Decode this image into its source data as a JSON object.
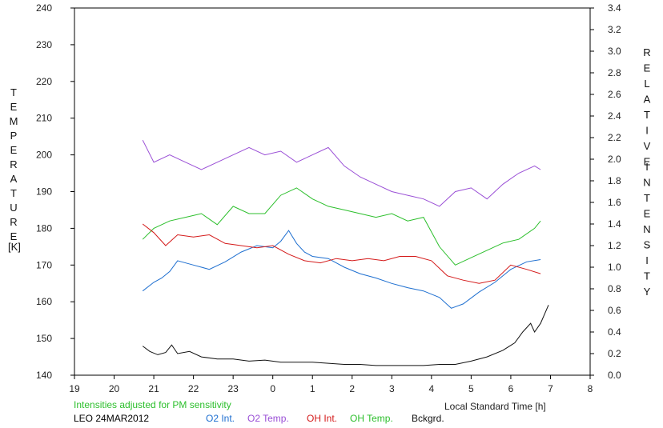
{
  "chart_data": {
    "type": "line",
    "left_axis": {
      "label_letters": [
        "T",
        "E",
        "M",
        "P",
        "E",
        "R",
        "A",
        "T",
        "U",
        "R",
        "E"
      ],
      "unit": "[K]",
      "ylim": [
        140,
        240
      ],
      "ticks": [
        140,
        150,
        160,
        170,
        180,
        190,
        200,
        210,
        220,
        230,
        240
      ]
    },
    "right_axis": {
      "label_word1": [
        "R",
        "E",
        "L",
        "A",
        "T",
        "I",
        "V",
        "E"
      ],
      "label_word2": [
        "I",
        "N",
        "T",
        "E",
        "N",
        "S",
        "I",
        "T",
        "Y"
      ],
      "ylim": [
        0.0,
        3.4
      ],
      "ticks": [
        "0.0",
        "0.2",
        "0.4",
        "0.6",
        "0.8",
        "1.0",
        "1.2",
        "1.4",
        "1.6",
        "1.8",
        "2.0",
        "2.2",
        "2.4",
        "2.6",
        "2.8",
        "3.0",
        "3.2",
        "3.4"
      ]
    },
    "x_axis": {
      "xlabel": "Local Standard Time [h]",
      "range": [
        19,
        32
      ],
      "tick_labels": [
        "19",
        "20",
        "21",
        "22",
        "23",
        "0",
        "1",
        "2",
        "3",
        "4",
        "5",
        "6",
        "7",
        "8"
      ]
    },
    "note": "Intensities adjusted for PM sensitivity",
    "station_date": "LEO 24MAR2012",
    "grid": false,
    "series": [
      {
        "name": "O2 Int.",
        "axis": "right",
        "color": "#1e6fd0",
        "x": [
          20.72,
          21.0,
          21.2,
          21.4,
          21.6,
          22.0,
          22.4,
          22.8,
          23.2,
          23.6,
          24.0,
          24.2,
          24.4,
          24.6,
          24.8,
          25.0,
          25.4,
          25.8,
          26.2,
          26.6,
          27.0,
          27.4,
          27.8,
          28.2,
          28.5,
          28.8,
          29.2,
          29.6,
          30.0,
          30.4,
          30.75
        ],
        "y": [
          0.78,
          0.86,
          0.9,
          0.96,
          1.06,
          1.02,
          0.98,
          1.05,
          1.14,
          1.2,
          1.18,
          1.24,
          1.34,
          1.22,
          1.14,
          1.1,
          1.08,
          1.0,
          0.94,
          0.9,
          0.85,
          0.81,
          0.78,
          0.72,
          0.62,
          0.66,
          0.77,
          0.86,
          0.98,
          1.05,
          1.07
        ]
      },
      {
        "name": "O2 Temp.",
        "axis": "left",
        "color": "#9a4fd6",
        "x": [
          20.72,
          21.0,
          21.4,
          21.8,
          22.2,
          22.6,
          23.0,
          23.4,
          23.8,
          24.2,
          24.6,
          25.0,
          25.4,
          25.8,
          26.2,
          26.6,
          27.0,
          27.4,
          27.8,
          28.2,
          28.6,
          29.0,
          29.4,
          29.8,
          30.2,
          30.6,
          30.75
        ],
        "y": [
          204,
          198,
          200,
          198,
          196,
          198,
          200,
          202,
          200,
          201,
          198,
          200,
          202,
          197,
          194,
          192,
          190,
          189,
          188,
          186,
          190,
          191,
          188,
          192,
          195,
          197,
          196
        ]
      },
      {
        "name": "OH Int.",
        "axis": "right",
        "color": "#d41a1a",
        "x": [
          20.72,
          21.0,
          21.3,
          21.6,
          22.0,
          22.4,
          22.8,
          23.2,
          23.6,
          24.0,
          24.4,
          24.8,
          25.2,
          25.6,
          26.0,
          26.4,
          26.8,
          27.2,
          27.6,
          28.0,
          28.4,
          28.8,
          29.2,
          29.6,
          30.0,
          30.4,
          30.75
        ],
        "y": [
          1.4,
          1.32,
          1.2,
          1.3,
          1.28,
          1.3,
          1.22,
          1.2,
          1.18,
          1.2,
          1.12,
          1.06,
          1.04,
          1.08,
          1.06,
          1.08,
          1.06,
          1.1,
          1.1,
          1.06,
          0.92,
          0.88,
          0.85,
          0.88,
          1.02,
          0.98,
          0.94
        ]
      },
      {
        "name": "OH Temp.",
        "axis": "left",
        "color": "#2cbf2c",
        "x": [
          20.72,
          21.0,
          21.4,
          21.8,
          22.2,
          22.6,
          23.0,
          23.4,
          23.8,
          24.2,
          24.6,
          25.0,
          25.4,
          25.8,
          26.2,
          26.6,
          27.0,
          27.4,
          27.8,
          28.2,
          28.6,
          29.0,
          29.4,
          29.8,
          30.2,
          30.6,
          30.75
        ],
        "y": [
          177,
          180,
          182,
          183,
          184,
          181,
          186,
          184,
          184,
          189,
          191,
          188,
          186,
          185,
          184,
          183,
          184,
          182,
          183,
          175,
          170,
          172,
          174,
          176,
          177,
          180,
          182
        ]
      },
      {
        "name": "Bckgrd.",
        "axis": "right",
        "color": "#111111",
        "x": [
          20.72,
          20.9,
          21.1,
          21.3,
          21.45,
          21.6,
          21.9,
          22.2,
          22.6,
          23.0,
          23.4,
          23.8,
          24.2,
          24.6,
          25.0,
          25.4,
          25.8,
          26.2,
          26.6,
          27.0,
          27.4,
          27.8,
          28.2,
          28.6,
          29.0,
          29.4,
          29.8,
          30.1,
          30.3,
          30.5,
          30.6,
          30.75,
          30.95
        ],
        "y": [
          0.27,
          0.22,
          0.19,
          0.21,
          0.28,
          0.2,
          0.22,
          0.17,
          0.15,
          0.15,
          0.13,
          0.14,
          0.12,
          0.12,
          0.12,
          0.11,
          0.1,
          0.1,
          0.09,
          0.09,
          0.09,
          0.09,
          0.1,
          0.1,
          0.13,
          0.17,
          0.23,
          0.3,
          0.4,
          0.48,
          0.4,
          0.48,
          0.65
        ]
      }
    ]
  }
}
